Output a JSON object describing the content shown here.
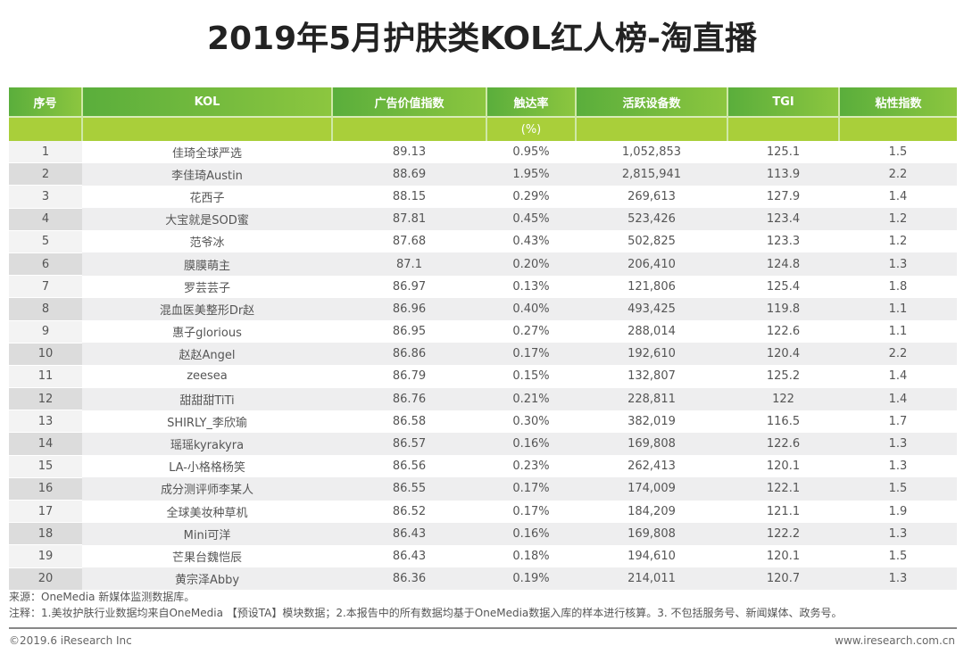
{
  "title": "2019年5月护肤类KOL红人榜-淘直播",
  "table": {
    "headers": [
      "序号",
      "KOL",
      "广告价值指数",
      "触达率",
      "活跃设备数",
      "TGI",
      "粘性指数"
    ],
    "subheaders": [
      "",
      "",
      "",
      "(%)",
      "",
      "",
      ""
    ],
    "rows": [
      [
        "1",
        "佳琦全球严选",
        "89.13",
        "0.95%",
        "1,052,853",
        "125.1",
        "1.5"
      ],
      [
        "2",
        "李佳琦Austin",
        "88.69",
        "1.95%",
        "2,815,941",
        "113.9",
        "2.2"
      ],
      [
        "3",
        "花西子",
        "88.15",
        "0.29%",
        "269,613",
        "127.9",
        "1.4"
      ],
      [
        "4",
        "大宝就是SOD蜜",
        "87.81",
        "0.45%",
        "523,426",
        "123.4",
        "1.2"
      ],
      [
        "5",
        "范爷冰",
        "87.68",
        "0.43%",
        "502,825",
        "123.3",
        "1.2"
      ],
      [
        "6",
        "膜膜萌主",
        "87.1",
        "0.20%",
        "206,410",
        "124.8",
        "1.3"
      ],
      [
        "7",
        "罗芸芸子",
        "86.97",
        "0.13%",
        "121,806",
        "125.4",
        "1.8"
      ],
      [
        "8",
        "混血医美整形Dr赵",
        "86.96",
        "0.40%",
        "493,425",
        "119.8",
        "1.1"
      ],
      [
        "9",
        "惠子glorious",
        "86.95",
        "0.27%",
        "288,014",
        "122.6",
        "1.1"
      ],
      [
        "10",
        "赵赵Angel",
        "86.86",
        "0.17%",
        "192,610",
        "120.4",
        "2.2"
      ],
      [
        "11",
        "zeesea",
        "86.79",
        "0.15%",
        "132,807",
        "125.2",
        "1.4"
      ],
      [
        "12",
        "甜甜甜TiTi",
        "86.76",
        "0.21%",
        "228,811",
        "122",
        "1.4"
      ],
      [
        "13",
        "SHIRLY_李欣瑜",
        "86.58",
        "0.30%",
        "382,019",
        "116.5",
        "1.7"
      ],
      [
        "14",
        "瑶瑶kyrakyra",
        "86.57",
        "0.16%",
        "169,808",
        "122.6",
        "1.3"
      ],
      [
        "15",
        "LA-小格格杨笑",
        "86.56",
        "0.23%",
        "262,413",
        "120.1",
        "1.3"
      ],
      [
        "16",
        "成分测评师李某人",
        "86.55",
        "0.17%",
        "174,009",
        "122.1",
        "1.5"
      ],
      [
        "17",
        "全球美妆种草机",
        "86.52",
        "0.17%",
        "184,209",
        "121.1",
        "1.9"
      ],
      [
        "18",
        "Mini可洋",
        "86.43",
        "0.16%",
        "169,808",
        "122.2",
        "1.3"
      ],
      [
        "19",
        "芒果台魏恺辰",
        "86.43",
        "0.18%",
        "194,610",
        "120.1",
        "1.5"
      ],
      [
        "20",
        "黄宗泽Abby",
        "86.36",
        "0.19%",
        "214,011",
        "120.7",
        "1.3"
      ]
    ]
  },
  "footer": {
    "source": "来源：OneMedia 新媒体监测数据库。",
    "note": "注释：1.美妆护肤行业数据均来自OneMedia 【预设TA】模块数据；2.本报告中的所有数据均基于OneMedia数据入库的样本进行核算。3. 不包括服务号、新闻媒体、政务号。",
    "copyright": "©2019.6 iResearch Inc",
    "website": "www.iresearch.com.cn"
  },
  "colors": {
    "header_green": "#7dbd3f",
    "subheader_green": "#a9cf3a"
  }
}
